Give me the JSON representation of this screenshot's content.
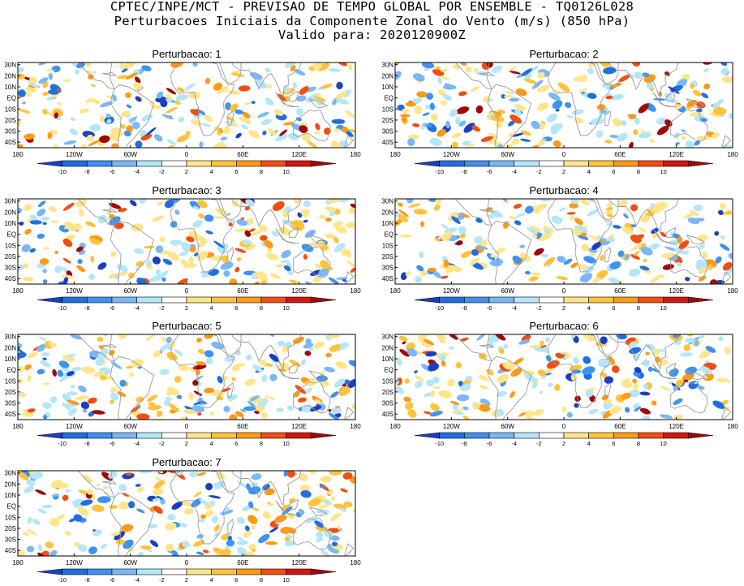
{
  "header": {
    "line1": "CPTEC/INPE/MCT - PREVISAO DE TEMPO GLOBAL POR ENSEMBLE - TQ0126L028",
    "line2": "Perturbacoes Iniciais da Componente Zonal do Vento (m/s) (850 hPa)",
    "line3": "Valido para: 2020120900Z"
  },
  "chart_data": [
    {
      "type": "heatmap",
      "title": "Perturbacao: 1",
      "seed": 11
    },
    {
      "type": "heatmap",
      "title": "Perturbacao: 2",
      "seed": 23
    },
    {
      "type": "heatmap",
      "title": "Perturbacao: 3",
      "seed": 37
    },
    {
      "type": "heatmap",
      "title": "Perturbacao: 4",
      "seed": 41
    },
    {
      "type": "heatmap",
      "title": "Perturbacao: 5",
      "seed": 53
    },
    {
      "type": "heatmap",
      "title": "Perturbacao: 6",
      "seed": 67
    },
    {
      "type": "heatmap",
      "title": "Perturbacao: 7",
      "seed": 79
    }
  ],
  "axes": {
    "x_ticks": [
      "180",
      "120W",
      "60W",
      "0",
      "60E",
      "120E",
      "180"
    ],
    "y_ticks": [
      "30N",
      "20N",
      "10N",
      "EQ",
      "10S",
      "20S",
      "30S",
      "40S"
    ],
    "x_range": [
      -180,
      180
    ],
    "y_range": [
      -45,
      32
    ]
  },
  "colorbar": {
    "labels": [
      "-10",
      "-8",
      "-6",
      "-4",
      "-2",
      "2",
      "4",
      "6",
      "8",
      "10"
    ],
    "colors": [
      "#1c3fc2",
      "#1f6fe0",
      "#3f92ee",
      "#7ab8f5",
      "#b5e6f7",
      "#ffffff",
      "#ffe58a",
      "#ffc33b",
      "#ff9a16",
      "#f24e12",
      "#d0160f",
      "#9e0a0a"
    ]
  }
}
